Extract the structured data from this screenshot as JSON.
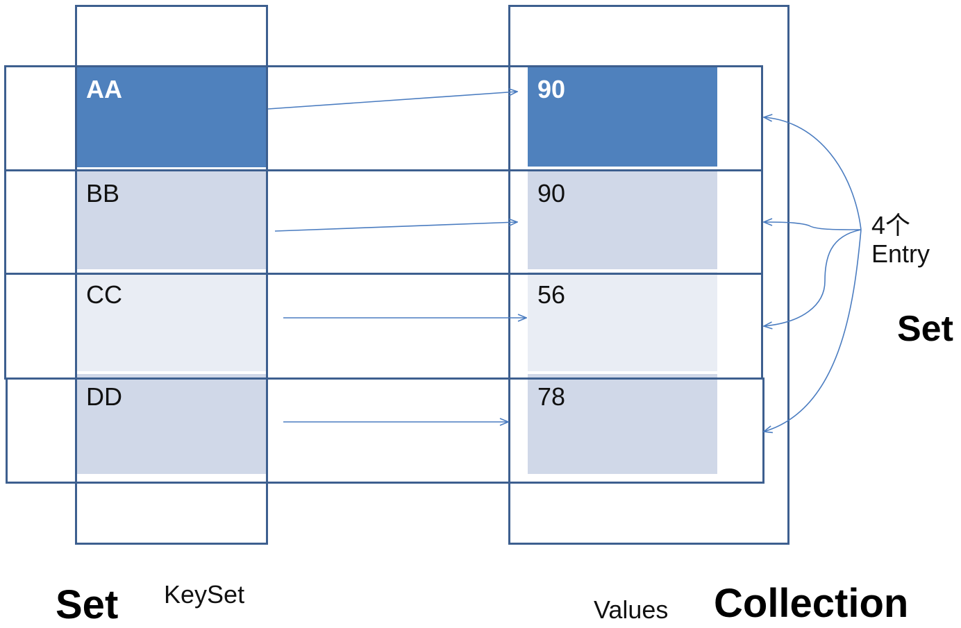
{
  "keys": [
    "AA",
    "BB",
    "CC",
    "DD"
  ],
  "values": [
    "90",
    "90",
    "56",
    "78"
  ],
  "entry_label_line1": "4个",
  "entry_label_line2": "Entry",
  "keyset_label": "KeySet",
  "values_label": "Values",
  "set_left_label": "Set",
  "collection_label": "Collection",
  "set_right_label": "Set",
  "colors": {
    "frame": "#3d5f8f",
    "arrow": "#4a7cc0",
    "dark_fill": "#4f81bd",
    "mid_fill": "#d0d8e8",
    "light_fill": "#e9edf4"
  }
}
